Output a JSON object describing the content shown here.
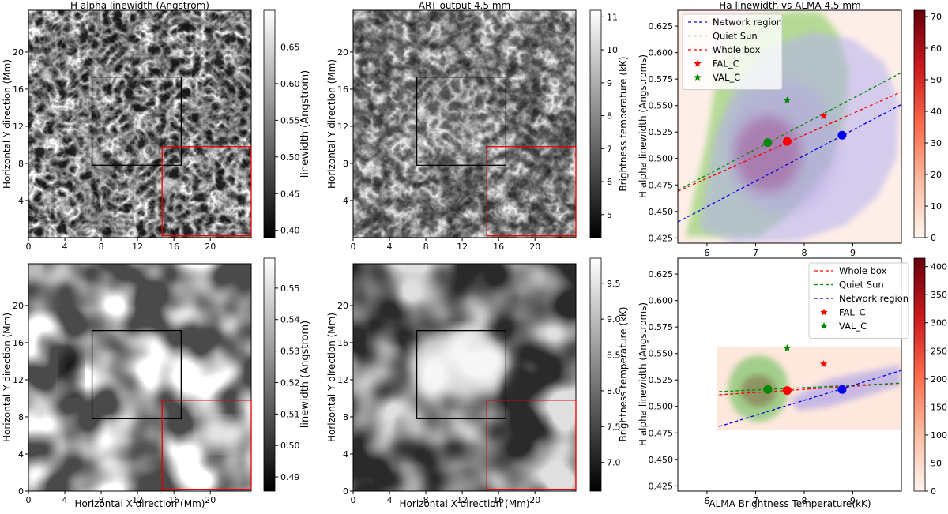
{
  "chart_data": [
    {
      "type": "heatmap",
      "title": "H alpha linewidth (Angstrom)",
      "xlabel": "",
      "ylabel": "Horizontal Y direction (Mm)",
      "xticks": [
        "0",
        "4",
        "8",
        "12",
        "16",
        "20"
      ],
      "yticks": [
        "4",
        "8",
        "12",
        "16",
        "20"
      ],
      "colorbar": {
        "label": "linewidth (Angstrom)",
        "ticks": [
          "0.40",
          "0.45",
          "0.50",
          "0.55",
          "0.60",
          "0.65"
        ],
        "range": [
          0.39,
          0.7
        ],
        "cmap": "gray"
      },
      "box_black": {
        "x": [
          7.0,
          16.8
        ],
        "y": [
          7.8,
          17.3
        ]
      },
      "box_red": {
        "x": [
          14.7,
          24.5
        ],
        "y": [
          0.2,
          9.8
        ]
      }
    },
    {
      "type": "heatmap",
      "title": "ART output 4.5 mm",
      "xlabel": "",
      "ylabel": "Horizontal Y direction (Mm)",
      "xticks": [
        "0",
        "4",
        "8",
        "12",
        "16",
        "20"
      ],
      "yticks": [
        "4",
        "8",
        "12",
        "16",
        "20"
      ],
      "colorbar": {
        "label": "Brightness temperature (kK)",
        "ticks": [
          "5",
          "6",
          "7",
          "8",
          "9",
          "10",
          "11"
        ],
        "range": [
          4.3,
          11.2
        ],
        "cmap": "gray"
      },
      "box_black": {
        "x": [
          7.0,
          16.8
        ],
        "y": [
          7.8,
          17.3
        ]
      },
      "box_red": {
        "x": [
          14.7,
          24.5
        ],
        "y": [
          0.2,
          9.8
        ]
      }
    },
    {
      "type": "scatter",
      "title": "Ha linewidth vs ALMA 4.5 mm",
      "xlabel": "",
      "ylabel": "H alpha linewidth (Angstroms)",
      "xlim": [
        5.4,
        10.0
      ],
      "ylim": [
        0.42,
        0.64
      ],
      "xticks": [
        "6",
        "7",
        "8",
        "9"
      ],
      "yticks": [
        "0.425",
        "0.450",
        "0.475",
        "0.500",
        "0.525",
        "0.550",
        "0.575",
        "0.600",
        "0.625"
      ],
      "legend": [
        "Network region",
        "Quiet Sun",
        "Whole box",
        "FAL_C",
        "VAL_C"
      ],
      "legend_position": "upper-left",
      "lines": [
        {
          "name": "Network region",
          "color": "#0000ee",
          "x": [
            5.4,
            10.0
          ],
          "y": [
            0.44,
            0.551
          ]
        },
        {
          "name": "Quiet Sun",
          "color": "#008800",
          "x": [
            5.4,
            10.0
          ],
          "y": [
            0.47,
            0.581
          ]
        },
        {
          "name": "Whole box",
          "color": "#ff0000",
          "x": [
            5.4,
            10.0
          ],
          "y": [
            0.469,
            0.563
          ]
        }
      ],
      "points": [
        {
          "color": "#008800",
          "x": 7.25,
          "y": 0.515
        },
        {
          "color": "#ff0000",
          "x": 7.65,
          "y": 0.516
        },
        {
          "color": "#0000ee",
          "x": 8.78,
          "y": 0.522
        }
      ],
      "stars": [
        {
          "name": "FAL_C",
          "color": "#ff0000",
          "x": 8.4,
          "y": 0.54
        },
        {
          "name": "VAL_C",
          "color": "#008800",
          "x": 7.65,
          "y": 0.555
        }
      ],
      "colorbar": {
        "ticks": [
          "0",
          "10",
          "20",
          "30",
          "40",
          "50",
          "60",
          "70"
        ],
        "range": [
          0,
          72
        ],
        "cmap": "Reds"
      }
    },
    {
      "type": "heatmap",
      "title": "",
      "xlabel": "Horizontal X direction (Mm)",
      "ylabel": "Horizontal Y direction (Mm)",
      "xticks": [
        "0",
        "4",
        "8",
        "12",
        "16",
        "20"
      ],
      "yticks": [
        "0",
        "4",
        "8",
        "12",
        "16",
        "20"
      ],
      "colorbar": {
        "label": "linewidth (Angstrom)",
        "ticks": [
          "0.49",
          "0.50",
          "0.51",
          "0.52",
          "0.53",
          "0.54",
          "0.55"
        ],
        "range": [
          0.4855,
          0.5595
        ],
        "cmap": "gray"
      },
      "box_black": {
        "x": [
          7.0,
          16.8
        ],
        "y": [
          7.8,
          17.3
        ]
      },
      "box_red": {
        "x": [
          14.7,
          24.5
        ],
        "y": [
          0.2,
          9.8
        ]
      }
    },
    {
      "type": "heatmap",
      "title": "",
      "xlabel": "Horizontal X direction (Mm)",
      "ylabel": "Horizontal Y direction (Mm)",
      "xticks": [
        "0",
        "4",
        "8",
        "12",
        "16",
        "20"
      ],
      "yticks": [
        "0",
        "4",
        "8",
        "12",
        "16",
        "20"
      ],
      "colorbar": {
        "label": "Brightness temperature (kK)",
        "ticks": [
          "7.0",
          "7.5",
          "8.0",
          "8.5",
          "9.0",
          "9.5"
        ],
        "range": [
          6.6,
          9.85
        ],
        "cmap": "gray"
      },
      "box_black": {
        "x": [
          7.0,
          16.8
        ],
        "y": [
          7.8,
          17.3
        ]
      },
      "box_red": {
        "x": [
          14.7,
          24.5
        ],
        "y": [
          0.2,
          9.8
        ]
      }
    },
    {
      "type": "scatter",
      "title": "",
      "xlabel": "ALMA Brightness Temperature(kK)",
      "ylabel": "H alpha linewidth (Angstroms)",
      "xlim": [
        5.4,
        10.0
      ],
      "ylim": [
        0.42,
        0.64
      ],
      "xticks": [
        "6",
        "7",
        "8",
        "9"
      ],
      "yticks": [
        "0.425",
        "0.450",
        "0.475",
        "0.500",
        "0.525",
        "0.550",
        "0.575",
        "0.600",
        "0.625"
      ],
      "legend": [
        "Whole box",
        "Quiet Sun",
        "Network region",
        "FAL_C",
        "VAL_C"
      ],
      "legend_position": "upper-right",
      "lines": [
        {
          "name": "Whole box",
          "color": "#ff0000",
          "x": [
            6.25,
            10.0
          ],
          "y": [
            0.511,
            0.522
          ]
        },
        {
          "name": "Quiet Sun",
          "color": "#008800",
          "x": [
            6.25,
            10.0
          ],
          "y": [
            0.514,
            0.522
          ]
        },
        {
          "name": "Network region",
          "color": "#0000ee",
          "x": [
            6.25,
            10.0
          ],
          "y": [
            0.481,
            0.534
          ]
        }
      ],
      "points": [
        {
          "color": "#008800",
          "x": 7.25,
          "y": 0.516
        },
        {
          "color": "#ff0000",
          "x": 7.65,
          "y": 0.515
        },
        {
          "color": "#0000ee",
          "x": 8.78,
          "y": 0.516
        }
      ],
      "stars": [
        {
          "name": "FAL_C",
          "color": "#ff0000",
          "x": 8.4,
          "y": 0.54
        },
        {
          "name": "VAL_C",
          "color": "#008800",
          "x": 7.65,
          "y": 0.555
        }
      ],
      "colorbar": {
        "ticks": [
          "0",
          "50",
          "100",
          "150",
          "200",
          "250",
          "300",
          "350",
          "400"
        ],
        "range": [
          0,
          415
        ],
        "cmap": "Reds"
      }
    }
  ]
}
